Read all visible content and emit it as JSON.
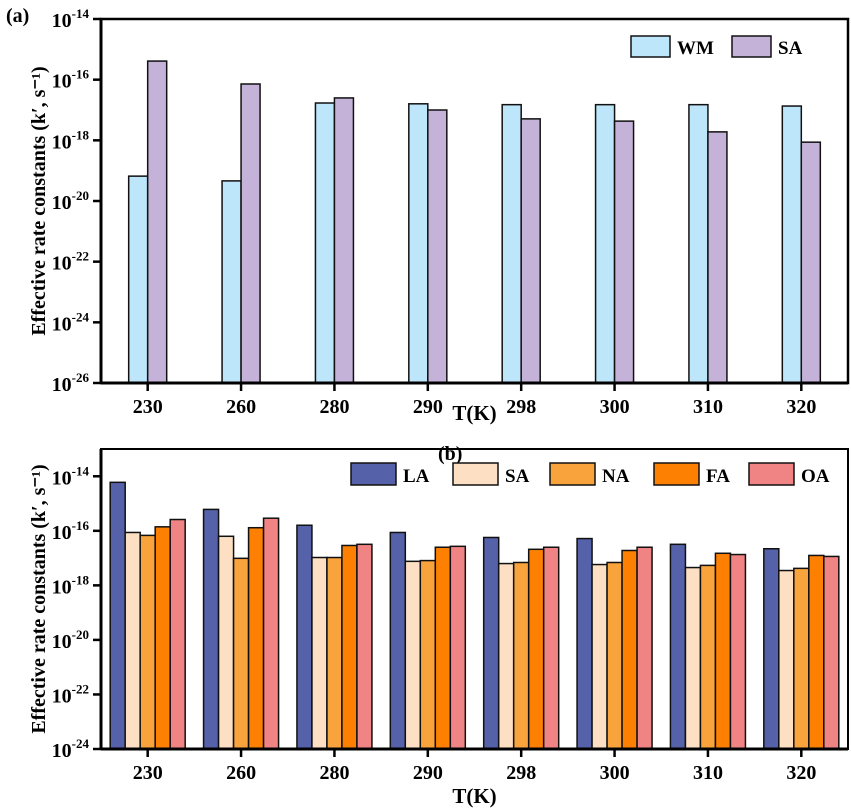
{
  "chart_data": [
    {
      "type": "bar",
      "panel_label": "(a)",
      "xlabel": "T(K)",
      "ylabel": "Effective rate constants (k′, s⁻¹)",
      "yscale": "log",
      "ylim": [
        1e-26,
        1e-14
      ],
      "yticks": [
        "10-26",
        "10-24",
        "10-22",
        "10-20",
        "10-18",
        "10-16",
        "10-14"
      ],
      "categories": [
        "230",
        "260",
        "280",
        "290",
        "298",
        "300",
        "310",
        "320"
      ],
      "legend": "top-right",
      "series": [
        {
          "name": "WM",
          "color": "#bde6fb",
          "values": [
            6.6e-20,
            4.6e-20,
            1.7e-17,
            1.6e-17,
            1.5e-17,
            1.5e-17,
            1.5e-17,
            1.35e-17
          ]
        },
        {
          "name": "SA",
          "color": "#c4b2d8",
          "values": [
            4.1e-16,
            7.2e-17,
            2.5e-17,
            1e-17,
            5.1e-18,
            4.3e-18,
            1.9e-18,
            8.7e-19
          ]
        }
      ]
    },
    {
      "type": "bar",
      "panel_label": "(b)",
      "xlabel": "T(K)",
      "ylabel": "Effective rate constants (k′, s⁻¹)",
      "yscale": "log",
      "ylim": [
        1e-24,
        1e-13
      ],
      "yticks": [
        "10-24",
        "10-22",
        "10-20",
        "10-18",
        "10-16",
        "10-14"
      ],
      "categories": [
        "230",
        "260",
        "280",
        "290",
        "298",
        "300",
        "310",
        "320"
      ],
      "legend": "top",
      "series": [
        {
          "name": "LA",
          "color": "#5561a8",
          "values": [
            6e-15,
            6.1e-16,
            1.6e-16,
            8.7e-17,
            5.7e-17,
            5.2e-17,
            3.2e-17,
            2.2e-17
          ]
        },
        {
          "name": "SA",
          "color": "#fde0c4",
          "values": [
            8.7e-17,
            6.3e-17,
            1.05e-17,
            7.6e-18,
            6.3e-18,
            5.8e-18,
            4.5e-18,
            3.5e-18
          ]
        },
        {
          "name": "NA",
          "color": "#f9a33d",
          "values": [
            6.8e-17,
            9.8e-18,
            1.05e-17,
            8.1e-18,
            6.9e-18,
            6.9e-18,
            5.4e-18,
            4.2e-18
          ]
        },
        {
          "name": "FA",
          "color": "#fd8002",
          "values": [
            1.4e-16,
            1.3e-16,
            2.9e-17,
            2.5e-17,
            2.1e-17,
            1.9e-17,
            1.5e-17,
            1.25e-17
          ]
        },
        {
          "name": "OA",
          "color": "#f08484",
          "values": [
            2.6e-16,
            2.9e-16,
            3.2e-17,
            2.7e-17,
            2.5e-17,
            2.5e-17,
            1.35e-17,
            1.15e-17
          ]
        }
      ]
    }
  ]
}
